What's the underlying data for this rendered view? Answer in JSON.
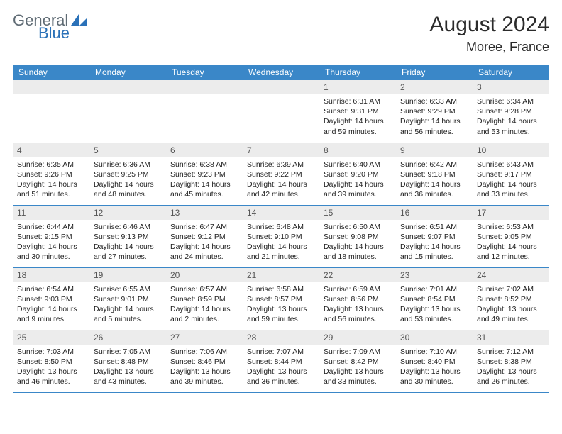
{
  "logo": {
    "general": "General",
    "blue": "Blue"
  },
  "title": {
    "month_year": "August 2024",
    "location": "Moree, France"
  },
  "colors": {
    "header_bg": "#3a87c8",
    "header_text": "#ffffff",
    "daynum_bg": "#ececec",
    "rule": "#3a87c8",
    "logo_gray": "#5f6b74",
    "logo_blue": "#2a71b8"
  },
  "weekdays": [
    "Sunday",
    "Monday",
    "Tuesday",
    "Wednesday",
    "Thursday",
    "Friday",
    "Saturday"
  ],
  "grid": [
    [
      null,
      null,
      null,
      null,
      {
        "n": "1",
        "rise": "Sunrise: 6:31 AM",
        "set": "Sunset: 9:31 PM",
        "dl1": "Daylight: 14 hours",
        "dl2": "and 59 minutes."
      },
      {
        "n": "2",
        "rise": "Sunrise: 6:33 AM",
        "set": "Sunset: 9:29 PM",
        "dl1": "Daylight: 14 hours",
        "dl2": "and 56 minutes."
      },
      {
        "n": "3",
        "rise": "Sunrise: 6:34 AM",
        "set": "Sunset: 9:28 PM",
        "dl1": "Daylight: 14 hours",
        "dl2": "and 53 minutes."
      }
    ],
    [
      {
        "n": "4",
        "rise": "Sunrise: 6:35 AM",
        "set": "Sunset: 9:26 PM",
        "dl1": "Daylight: 14 hours",
        "dl2": "and 51 minutes."
      },
      {
        "n": "5",
        "rise": "Sunrise: 6:36 AM",
        "set": "Sunset: 9:25 PM",
        "dl1": "Daylight: 14 hours",
        "dl2": "and 48 minutes."
      },
      {
        "n": "6",
        "rise": "Sunrise: 6:38 AM",
        "set": "Sunset: 9:23 PM",
        "dl1": "Daylight: 14 hours",
        "dl2": "and 45 minutes."
      },
      {
        "n": "7",
        "rise": "Sunrise: 6:39 AM",
        "set": "Sunset: 9:22 PM",
        "dl1": "Daylight: 14 hours",
        "dl2": "and 42 minutes."
      },
      {
        "n": "8",
        "rise": "Sunrise: 6:40 AM",
        "set": "Sunset: 9:20 PM",
        "dl1": "Daylight: 14 hours",
        "dl2": "and 39 minutes."
      },
      {
        "n": "9",
        "rise": "Sunrise: 6:42 AM",
        "set": "Sunset: 9:18 PM",
        "dl1": "Daylight: 14 hours",
        "dl2": "and 36 minutes."
      },
      {
        "n": "10",
        "rise": "Sunrise: 6:43 AM",
        "set": "Sunset: 9:17 PM",
        "dl1": "Daylight: 14 hours",
        "dl2": "and 33 minutes."
      }
    ],
    [
      {
        "n": "11",
        "rise": "Sunrise: 6:44 AM",
        "set": "Sunset: 9:15 PM",
        "dl1": "Daylight: 14 hours",
        "dl2": "and 30 minutes."
      },
      {
        "n": "12",
        "rise": "Sunrise: 6:46 AM",
        "set": "Sunset: 9:13 PM",
        "dl1": "Daylight: 14 hours",
        "dl2": "and 27 minutes."
      },
      {
        "n": "13",
        "rise": "Sunrise: 6:47 AM",
        "set": "Sunset: 9:12 PM",
        "dl1": "Daylight: 14 hours",
        "dl2": "and 24 minutes."
      },
      {
        "n": "14",
        "rise": "Sunrise: 6:48 AM",
        "set": "Sunset: 9:10 PM",
        "dl1": "Daylight: 14 hours",
        "dl2": "and 21 minutes."
      },
      {
        "n": "15",
        "rise": "Sunrise: 6:50 AM",
        "set": "Sunset: 9:08 PM",
        "dl1": "Daylight: 14 hours",
        "dl2": "and 18 minutes."
      },
      {
        "n": "16",
        "rise": "Sunrise: 6:51 AM",
        "set": "Sunset: 9:07 PM",
        "dl1": "Daylight: 14 hours",
        "dl2": "and 15 minutes."
      },
      {
        "n": "17",
        "rise": "Sunrise: 6:53 AM",
        "set": "Sunset: 9:05 PM",
        "dl1": "Daylight: 14 hours",
        "dl2": "and 12 minutes."
      }
    ],
    [
      {
        "n": "18",
        "rise": "Sunrise: 6:54 AM",
        "set": "Sunset: 9:03 PM",
        "dl1": "Daylight: 14 hours",
        "dl2": "and 9 minutes."
      },
      {
        "n": "19",
        "rise": "Sunrise: 6:55 AM",
        "set": "Sunset: 9:01 PM",
        "dl1": "Daylight: 14 hours",
        "dl2": "and 5 minutes."
      },
      {
        "n": "20",
        "rise": "Sunrise: 6:57 AM",
        "set": "Sunset: 8:59 PM",
        "dl1": "Daylight: 14 hours",
        "dl2": "and 2 minutes."
      },
      {
        "n": "21",
        "rise": "Sunrise: 6:58 AM",
        "set": "Sunset: 8:57 PM",
        "dl1": "Daylight: 13 hours",
        "dl2": "and 59 minutes."
      },
      {
        "n": "22",
        "rise": "Sunrise: 6:59 AM",
        "set": "Sunset: 8:56 PM",
        "dl1": "Daylight: 13 hours",
        "dl2": "and 56 minutes."
      },
      {
        "n": "23",
        "rise": "Sunrise: 7:01 AM",
        "set": "Sunset: 8:54 PM",
        "dl1": "Daylight: 13 hours",
        "dl2": "and 53 minutes."
      },
      {
        "n": "24",
        "rise": "Sunrise: 7:02 AM",
        "set": "Sunset: 8:52 PM",
        "dl1": "Daylight: 13 hours",
        "dl2": "and 49 minutes."
      }
    ],
    [
      {
        "n": "25",
        "rise": "Sunrise: 7:03 AM",
        "set": "Sunset: 8:50 PM",
        "dl1": "Daylight: 13 hours",
        "dl2": "and 46 minutes."
      },
      {
        "n": "26",
        "rise": "Sunrise: 7:05 AM",
        "set": "Sunset: 8:48 PM",
        "dl1": "Daylight: 13 hours",
        "dl2": "and 43 minutes."
      },
      {
        "n": "27",
        "rise": "Sunrise: 7:06 AM",
        "set": "Sunset: 8:46 PM",
        "dl1": "Daylight: 13 hours",
        "dl2": "and 39 minutes."
      },
      {
        "n": "28",
        "rise": "Sunrise: 7:07 AM",
        "set": "Sunset: 8:44 PM",
        "dl1": "Daylight: 13 hours",
        "dl2": "and 36 minutes."
      },
      {
        "n": "29",
        "rise": "Sunrise: 7:09 AM",
        "set": "Sunset: 8:42 PM",
        "dl1": "Daylight: 13 hours",
        "dl2": "and 33 minutes."
      },
      {
        "n": "30",
        "rise": "Sunrise: 7:10 AM",
        "set": "Sunset: 8:40 PM",
        "dl1": "Daylight: 13 hours",
        "dl2": "and 30 minutes."
      },
      {
        "n": "31",
        "rise": "Sunrise: 7:12 AM",
        "set": "Sunset: 8:38 PM",
        "dl1": "Daylight: 13 hours",
        "dl2": "and 26 minutes."
      }
    ]
  ]
}
